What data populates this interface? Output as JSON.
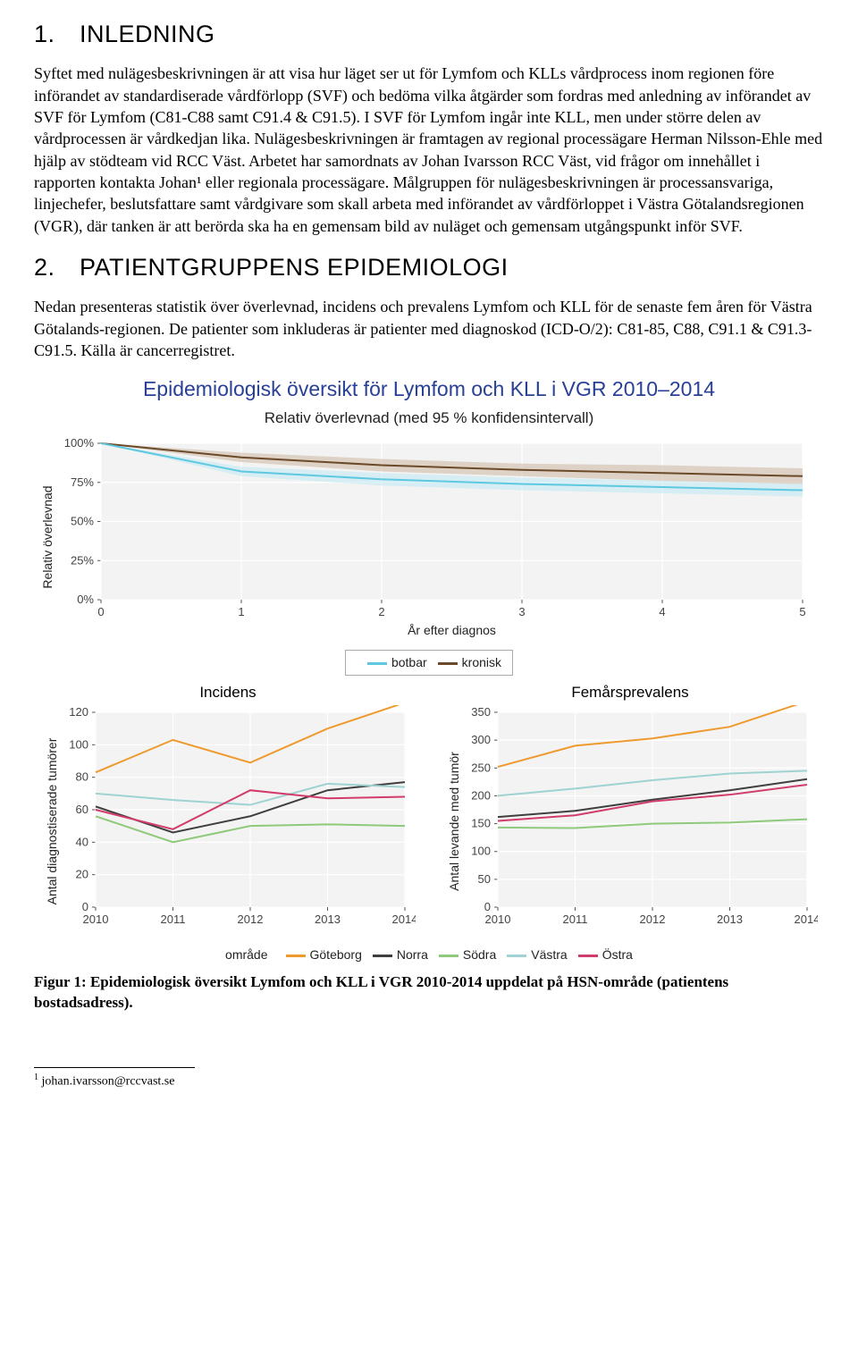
{
  "section1": {
    "heading": "1. INLEDNING",
    "paragraph": "Syftet med nulägesbeskrivningen är att visa hur läget ser ut för Lymfom och KLLs vårdprocess inom regionen före införandet av standardiserade vårdförlopp (SVF) och bedöma vilka åtgärder som fordras med anledning av införandet av SVF för Lymfom (C81-C88 samt C91.4 & C91.5). I SVF för Lymfom ingår inte KLL, men under större delen av vårdprocessen är vårdkedjan lika. Nulägesbeskrivningen är framtagen av regional processägare Herman Nilsson-Ehle med hjälp av stödteam vid RCC Väst. Arbetet har samordnats av Johan Ivarsson RCC Väst, vid frågor om innehållet i rapporten kontakta Johan¹ eller regionala processägare. Målgruppen för nulägesbeskrivningen är processansvariga, linjechefer, beslutsfattare samt vårdgivare som skall arbeta med införandet av vårdförloppet i Västra Götalandsregionen (VGR), där tanken är att berörda ska ha en gemensam bild av nuläget och gemensam utgångspunkt inför SVF."
  },
  "section2": {
    "heading": "2. PATIENTGRUPPENS EPIDEMIOLOGI",
    "paragraph": "Nedan presenteras statistik över överlevnad, incidens och prevalens Lymfom och KLL för de senaste fem åren för Västra Götalands-regionen. De patienter som inkluderas är patienter med diagnoskod (ICD-O/2): C81-85, C88, C91.1 & C91.3-C91.5. Källa är cancerregistret."
  },
  "charts": {
    "title": "Epidemiologisk översikt för Lymfom och KLL i VGR 2010–2014",
    "survival": {
      "type": "line-ribbon",
      "subtitle": "Relativ överlevnad (med 95 % konfidensintervall)",
      "ylabel": "Relativ överlevnad",
      "xlabel": "År efter diagnos",
      "x_ticks": [
        0,
        1,
        2,
        3,
        4,
        5
      ],
      "y_ticks": [
        0,
        25,
        50,
        75,
        100
      ],
      "y_tick_labels": [
        "0%",
        "25%",
        "50%",
        "75%",
        "100%"
      ],
      "background_color": "#f3f3f3",
      "grid_color": "#ffffff",
      "legend_items": [
        {
          "label": "botbar",
          "color": "#5ec8e0"
        },
        {
          "label": "kronisk",
          "color": "#6b4a2a"
        }
      ],
      "series": {
        "botbar": {
          "color": "#5ec8e0",
          "ribbon_color": "#bde8f2",
          "values": [
            100,
            82,
            77,
            74,
            72,
            70
          ],
          "lo": [
            100,
            79,
            73,
            70,
            68,
            66
          ],
          "hi": [
            100,
            85,
            81,
            78,
            76,
            74
          ]
        },
        "kronisk": {
          "color": "#6b4a2a",
          "ribbon_color": "#cbb79e",
          "values": [
            100,
            91,
            86,
            83,
            81,
            79
          ],
          "lo": [
            100,
            88,
            82,
            79,
            76,
            74
          ],
          "hi": [
            100,
            94,
            90,
            87,
            86,
            84
          ]
        }
      }
    },
    "incidence": {
      "type": "line",
      "title": "Incidens",
      "ylabel": "Antal diagnostiserade tumörer",
      "x_ticks": [
        2010,
        2011,
        2012,
        2013,
        2014
      ],
      "y_ticks": [
        0,
        20,
        40,
        60,
        80,
        100,
        120
      ],
      "background_color": "#f3f3f3",
      "grid_color": "#ffffff",
      "series": {
        "goteborg": {
          "color": "#ef9a2f",
          "values": [
            83,
            103,
            89,
            110,
            126
          ]
        },
        "norra": {
          "color": "#3f3f3f",
          "values": [
            62,
            46,
            56,
            72,
            77
          ]
        },
        "sodra": {
          "color": "#8fc97a",
          "values": [
            56,
            40,
            50,
            51,
            50
          ]
        },
        "vastra": {
          "color": "#9fd2d2",
          "values": [
            70,
            66,
            63,
            76,
            74
          ]
        },
        "ostra": {
          "color": "#d23c6a",
          "values": [
            60,
            48,
            72,
            67,
            68
          ]
        }
      }
    },
    "prevalence": {
      "type": "line",
      "title": "Femårsprevalens",
      "ylabel": "Antal levande med tumör",
      "x_ticks": [
        2010,
        2011,
        2012,
        2013,
        2014
      ],
      "y_ticks": [
        0,
        50,
        100,
        150,
        200,
        250,
        300,
        350
      ],
      "background_color": "#f3f3f3",
      "grid_color": "#ffffff",
      "series": {
        "goteborg": {
          "color": "#ef9a2f",
          "values": [
            252,
            290,
            303,
            324,
            370
          ]
        },
        "norra": {
          "color": "#3f3f3f",
          "values": [
            162,
            173,
            193,
            210,
            230
          ]
        },
        "sodra": {
          "color": "#8fc97a",
          "values": [
            143,
            142,
            150,
            152,
            158
          ]
        },
        "vastra": {
          "color": "#9fd2d2",
          "values": [
            200,
            213,
            228,
            240,
            245
          ]
        },
        "ostra": {
          "color": "#d23c6a",
          "values": [
            155,
            165,
            190,
            202,
            220
          ]
        }
      }
    },
    "area_legend": {
      "label": "område",
      "items": [
        {
          "label": "Göteborg",
          "color": "#ef9a2f"
        },
        {
          "label": "Norra",
          "color": "#3f3f3f"
        },
        {
          "label": "Södra",
          "color": "#8fc97a"
        },
        {
          "label": "Västra",
          "color": "#9fd2d2"
        },
        {
          "label": "Östra",
          "color": "#d23c6a"
        }
      ]
    }
  },
  "figure_caption": "Figur 1: Epidemiologisk översikt Lymfom och KLL i VGR 2010-2014 uppdelat på HSN-område (patientens bostadsadress).",
  "footnote": {
    "marker": "1",
    "text": "johan.ivarsson@rccvast.se"
  }
}
